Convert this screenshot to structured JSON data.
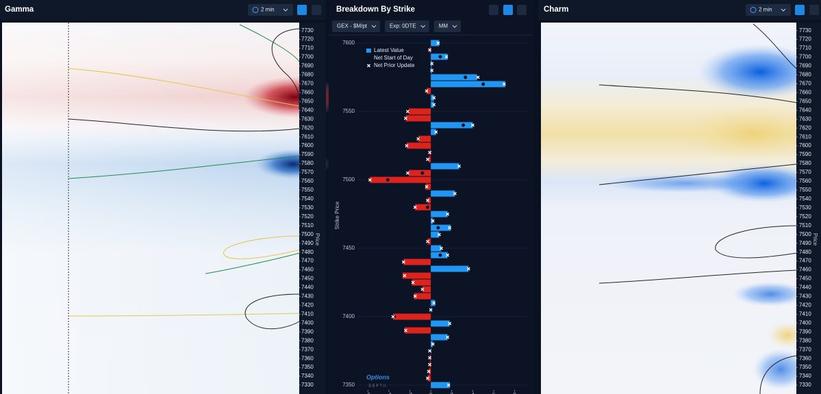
{
  "chart_data": [
    {
      "type": "heatmap",
      "title": "Gamma",
      "interval": "2 min",
      "y_label": "Price",
      "ylim": [
        7320,
        7739
      ],
      "yticks": [
        7730,
        7720,
        7710,
        7700,
        7690,
        7680,
        7670,
        7660,
        7650,
        7640,
        7630,
        7620,
        7610,
        7600,
        7590,
        7580,
        7570,
        7560,
        7550,
        7540,
        7530,
        7520,
        7510,
        7500,
        7490,
        7480,
        7470,
        7460,
        7450,
        7440,
        7430,
        7420,
        7410,
        7400,
        7390,
        7380,
        7370,
        7360,
        7350,
        7340,
        7330
      ]
    },
    {
      "type": "bar",
      "orientation": "horizontal",
      "title": "Breakdown By Strike",
      "controls": [
        "GEX - $M/pt",
        "Exp: 0DTE",
        "MM"
      ],
      "y_label": "Strike Price",
      "legend": "upper left",
      "y": [
        7600,
        7595,
        7590,
        7585,
        7580,
        7575,
        7570,
        7565,
        7560,
        7555,
        7550,
        7545,
        7540,
        7535,
        7530,
        7525,
        7520,
        7515,
        7510,
        7505,
        7500,
        7495,
        7490,
        7485,
        7480,
        7475,
        7470,
        7465,
        7460,
        7455,
        7450,
        7445,
        7440,
        7435,
        7430,
        7425,
        7420,
        7415,
        7410,
        7405,
        7400,
        7395,
        7390,
        7385,
        7380,
        7375,
        7370,
        7365,
        7360,
        7355,
        7350
      ],
      "ylim": [
        7344,
        7606
      ],
      "yticks": [
        7600,
        7550,
        7500,
        7450,
        7400,
        7350
      ],
      "xlim": [
        -7,
        9.2
      ],
      "xticks": [
        -6,
        -4,
        -2,
        0,
        2,
        4,
        6,
        8
      ],
      "series": [
        {
          "name": "Latest Value",
          "color": "#2196f3",
          "negative_color": "#dc231e",
          "values": [
            0.8,
            -0.1,
            1.6,
            0.1,
            0.1,
            4.4,
            7.1,
            -0.4,
            0.3,
            0.3,
            -2.1,
            -2.4,
            4.0,
            0.5,
            -1.2,
            -2.3,
            -0.1,
            -0.2,
            2.7,
            -2.1,
            -5.8,
            -0.5,
            2.3,
            -0.3,
            -1.5,
            1.6,
            0.2,
            1.9,
            0.8,
            -0.3,
            1.0,
            1.6,
            -2.6,
            3.6,
            -2.7,
            -1.8,
            -0.8,
            -1.6,
            0.4,
            0.0,
            -3.6,
            1.8,
            -2.5,
            1.6,
            0.2,
            0.0,
            -0.1,
            -0.1,
            -0.2,
            -0.3,
            1.8
          ]
        },
        {
          "name": "Net Start of Day",
          "color": "#0a0f1e",
          "values": [
            null,
            null,
            0.9,
            null,
            null,
            3.3,
            5.0,
            null,
            null,
            null,
            -2.2,
            -2.5,
            3.1,
            null,
            -1.2,
            null,
            null,
            null,
            null,
            -0.8,
            -4.1,
            null,
            null,
            null,
            -0.3,
            null,
            null,
            0.7,
            null,
            null,
            null,
            0.9,
            null,
            null,
            null,
            null,
            null,
            null,
            null,
            null,
            -3.5,
            null,
            -2.6,
            null,
            null,
            null,
            null,
            null,
            null,
            null,
            null
          ]
        },
        {
          "name": "Net Prior Update",
          "color": "#ffffff",
          "values": [
            0.7,
            -0.1,
            1.5,
            0.1,
            0.1,
            4.5,
            7.0,
            -0.4,
            0.3,
            0.3,
            -2.2,
            -2.4,
            4.0,
            0.5,
            -1.2,
            -2.3,
            -0.1,
            -0.3,
            2.7,
            -2.2,
            -5.8,
            -0.4,
            2.3,
            -0.3,
            -1.5,
            1.6,
            0.2,
            1.8,
            0.8,
            -0.3,
            1.0,
            1.6,
            -2.6,
            3.6,
            -2.5,
            -1.7,
            -0.8,
            -1.5,
            0.3,
            0.0,
            -3.6,
            1.8,
            -2.4,
            1.6,
            0.2,
            -0.1,
            -0.1,
            -0.1,
            -0.2,
            -0.3,
            1.7
          ]
        }
      ]
    },
    {
      "type": "heatmap",
      "title": "Charm",
      "interval": "2 min",
      "y_label": "Price",
      "ylim": [
        7320,
        7739
      ],
      "yticks": [
        7730,
        7720,
        7710,
        7700,
        7690,
        7680,
        7670,
        7660,
        7650,
        7640,
        7630,
        7620,
        7610,
        7600,
        7590,
        7580,
        7570,
        7560,
        7550,
        7540,
        7530,
        7520,
        7510,
        7500,
        7490,
        7480,
        7470,
        7460,
        7450,
        7440,
        7430,
        7420,
        7410,
        7400,
        7390,
        7380,
        7370,
        7360,
        7350,
        7340,
        7330
      ]
    }
  ],
  "branding": {
    "name": "Options",
    "tagline": "DEPTH"
  }
}
